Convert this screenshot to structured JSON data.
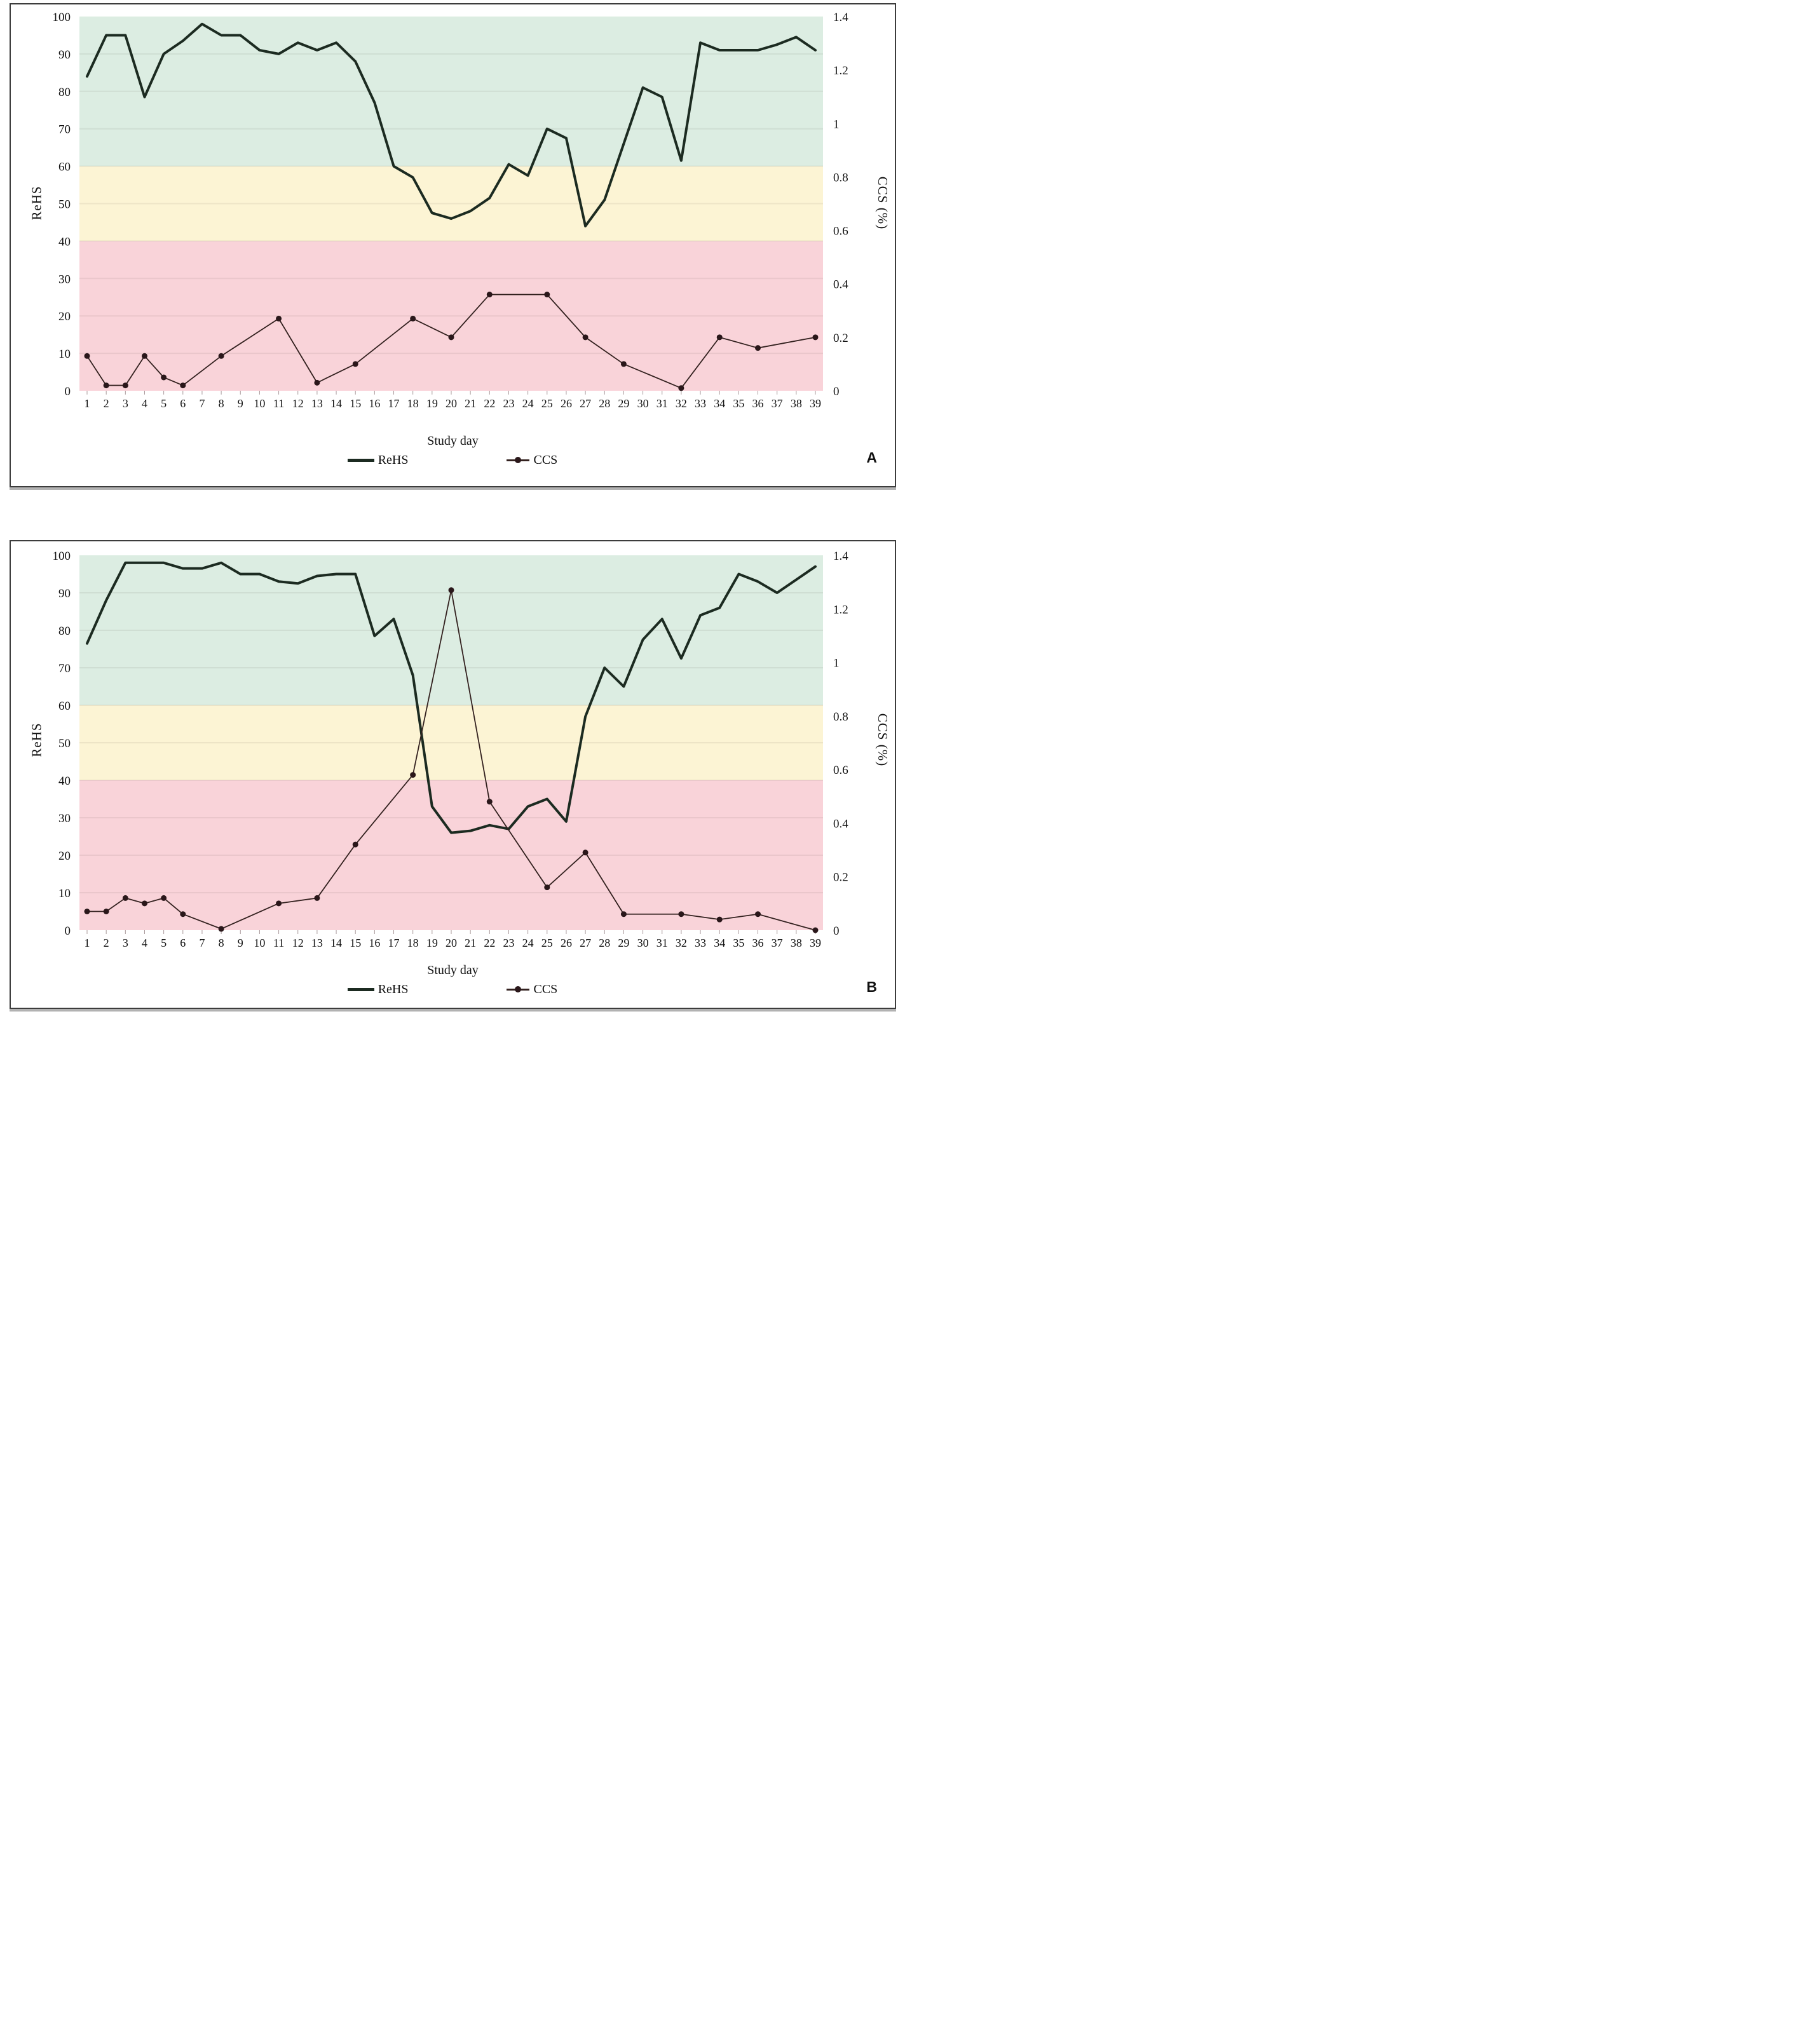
{
  "figure": {
    "panels": [
      {
        "id": "A",
        "corner_label": "A",
        "y_left_label": "ReHS",
        "y_right_label": "CCS (%)",
        "x_label": "Study day",
        "legend": [
          {
            "label": "ReHS",
            "swatch": "thick-line"
          },
          {
            "label": "CCS",
            "swatch": "dot-line"
          }
        ]
      },
      {
        "id": "B",
        "corner_label": "B",
        "y_left_label": "ReHS",
        "y_right_label": "CCS (%)",
        "x_label": "Study day",
        "legend": [
          {
            "label": "ReHS",
            "swatch": "thick-line"
          },
          {
            "label": "CCS",
            "swatch": "dot-line"
          }
        ]
      }
    ],
    "colors": {
      "band_green": "#dcede2",
      "band_yellow": "#fcf4d4",
      "band_pink": "#f9d3d9",
      "rehs_line": "#1c2b21",
      "ccs_line": "#33211f",
      "ccs_dot": "#2a171a",
      "gridline": "rgba(60,50,40,0.08)",
      "tick": "#a8989a",
      "border": "#3c3c3c"
    }
  },
  "chart_data": [
    {
      "type": "line",
      "panel": "A",
      "xlabel": "Study day",
      "ylabel_left": "ReHS",
      "ylabel_right": "CCS (%)",
      "ylim_left": [
        0,
        100
      ],
      "ylim_right": [
        0,
        1.4
      ],
      "x_ticks": [
        1,
        2,
        3,
        4,
        5,
        6,
        7,
        8,
        9,
        10,
        11,
        12,
        13,
        14,
        15,
        16,
        17,
        18,
        19,
        20,
        21,
        22,
        23,
        24,
        25,
        26,
        27,
        28,
        29,
        30,
        31,
        32,
        33,
        34,
        35,
        36,
        37,
        38,
        39
      ],
      "y_ticks_left": [
        0,
        10,
        20,
        30,
        40,
        50,
        60,
        70,
        80,
        90,
        100
      ],
      "y_ticks_right": [
        "0",
        "0.2",
        "0.4",
        "0.6",
        "0.8",
        "1",
        "1.2",
        "1.4"
      ],
      "grid": true,
      "legend_position": "bottom",
      "bands": [
        {
          "range": [
            60,
            100
          ],
          "color": "#dcede2"
        },
        {
          "range": [
            40,
            60
          ],
          "color": "#fcf4d4"
        },
        {
          "range": [
            0,
            40
          ],
          "color": "#f9d3d9"
        }
      ],
      "series": [
        {
          "name": "ReHS",
          "axis": "left",
          "style": "thick",
          "values": [
            84,
            95,
            95,
            78.5,
            90,
            93.5,
            98,
            95,
            95,
            91,
            90,
            93,
            91,
            93,
            88,
            77,
            60,
            57,
            47.5,
            46,
            48,
            51.5,
            60.5,
            57.5,
            70,
            67.5,
            44,
            51,
            66,
            81,
            78.5,
            61.5,
            93,
            91,
            91,
            91,
            92.5,
            94.5,
            91
          ]
        },
        {
          "name": "CCS",
          "axis": "right",
          "style": "thin-markers",
          "points": [
            {
              "day": 1,
              "value": 0.13
            },
            {
              "day": 2,
              "value": 0.02
            },
            {
              "day": 3,
              "value": 0.02
            },
            {
              "day": 4,
              "value": 0.13
            },
            {
              "day": 5,
              "value": 0.05
            },
            {
              "day": 6,
              "value": 0.02
            },
            {
              "day": 8,
              "value": 0.13
            },
            {
              "day": 11,
              "value": 0.27
            },
            {
              "day": 13,
              "value": 0.03
            },
            {
              "day": 15,
              "value": 0.1
            },
            {
              "day": 18,
              "value": 0.27
            },
            {
              "day": 20,
              "value": 0.2
            },
            {
              "day": 22,
              "value": 0.36
            },
            {
              "day": 25,
              "value": 0.36
            },
            {
              "day": 27,
              "value": 0.2
            },
            {
              "day": 29,
              "value": 0.1
            },
            {
              "day": 32,
              "value": 0.01
            },
            {
              "day": 34,
              "value": 0.2
            },
            {
              "day": 36,
              "value": 0.16
            },
            {
              "day": 39,
              "value": 0.2
            }
          ]
        }
      ]
    },
    {
      "type": "line",
      "panel": "B",
      "xlabel": "Study day",
      "ylabel_left": "ReHS",
      "ylabel_right": "CCS (%)",
      "ylim_left": [
        0,
        100
      ],
      "ylim_right": [
        0,
        1.4
      ],
      "x_ticks": [
        1,
        2,
        3,
        4,
        5,
        6,
        7,
        8,
        9,
        10,
        11,
        12,
        13,
        14,
        15,
        16,
        17,
        18,
        19,
        20,
        21,
        22,
        23,
        24,
        25,
        26,
        27,
        28,
        29,
        30,
        31,
        32,
        33,
        34,
        35,
        36,
        37,
        38,
        39
      ],
      "y_ticks_left": [
        0,
        10,
        20,
        30,
        40,
        50,
        60,
        70,
        80,
        90,
        100
      ],
      "y_ticks_right": [
        "0",
        "0.2",
        "0.4",
        "0.6",
        "0.8",
        "1",
        "1.2",
        "1.4"
      ],
      "grid": true,
      "legend_position": "bottom",
      "bands": [
        {
          "range": [
            60,
            100
          ],
          "color": "#dcede2"
        },
        {
          "range": [
            40,
            60
          ],
          "color": "#fcf4d4"
        },
        {
          "range": [
            0,
            40
          ],
          "color": "#f9d3d9"
        }
      ],
      "series": [
        {
          "name": "ReHS",
          "axis": "left",
          "style": "thick",
          "values": [
            76.5,
            88,
            98,
            98,
            98,
            96.5,
            96.5,
            98,
            95,
            95,
            93,
            92.5,
            94.5,
            95,
            95,
            78.5,
            83,
            68,
            33,
            26,
            26.5,
            28,
            27,
            33,
            35,
            29,
            57,
            70,
            65,
            77.5,
            83,
            72.5,
            84,
            86,
            95,
            93,
            90,
            93.5,
            97
          ]
        },
        {
          "name": "CCS",
          "axis": "right",
          "style": "thin-markers",
          "points": [
            {
              "day": 1,
              "value": 0.07
            },
            {
              "day": 2,
              "value": 0.07
            },
            {
              "day": 3,
              "value": 0.12
            },
            {
              "day": 4,
              "value": 0.1
            },
            {
              "day": 5,
              "value": 0.12
            },
            {
              "day": 6,
              "value": 0.06
            },
            {
              "day": 8,
              "value": 0.005
            },
            {
              "day": 11,
              "value": 0.1
            },
            {
              "day": 13,
              "value": 0.12
            },
            {
              "day": 15,
              "value": 0.32
            },
            {
              "day": 18,
              "value": 0.58
            },
            {
              "day": 20,
              "value": 1.27
            },
            {
              "day": 22,
              "value": 0.48
            },
            {
              "day": 25,
              "value": 0.16
            },
            {
              "day": 27,
              "value": 0.29
            },
            {
              "day": 29,
              "value": 0.06
            },
            {
              "day": 32,
              "value": 0.06
            },
            {
              "day": 34,
              "value": 0.04
            },
            {
              "day": 36,
              "value": 0.06
            },
            {
              "day": 39,
              "value": 0.0
            }
          ]
        }
      ]
    }
  ]
}
